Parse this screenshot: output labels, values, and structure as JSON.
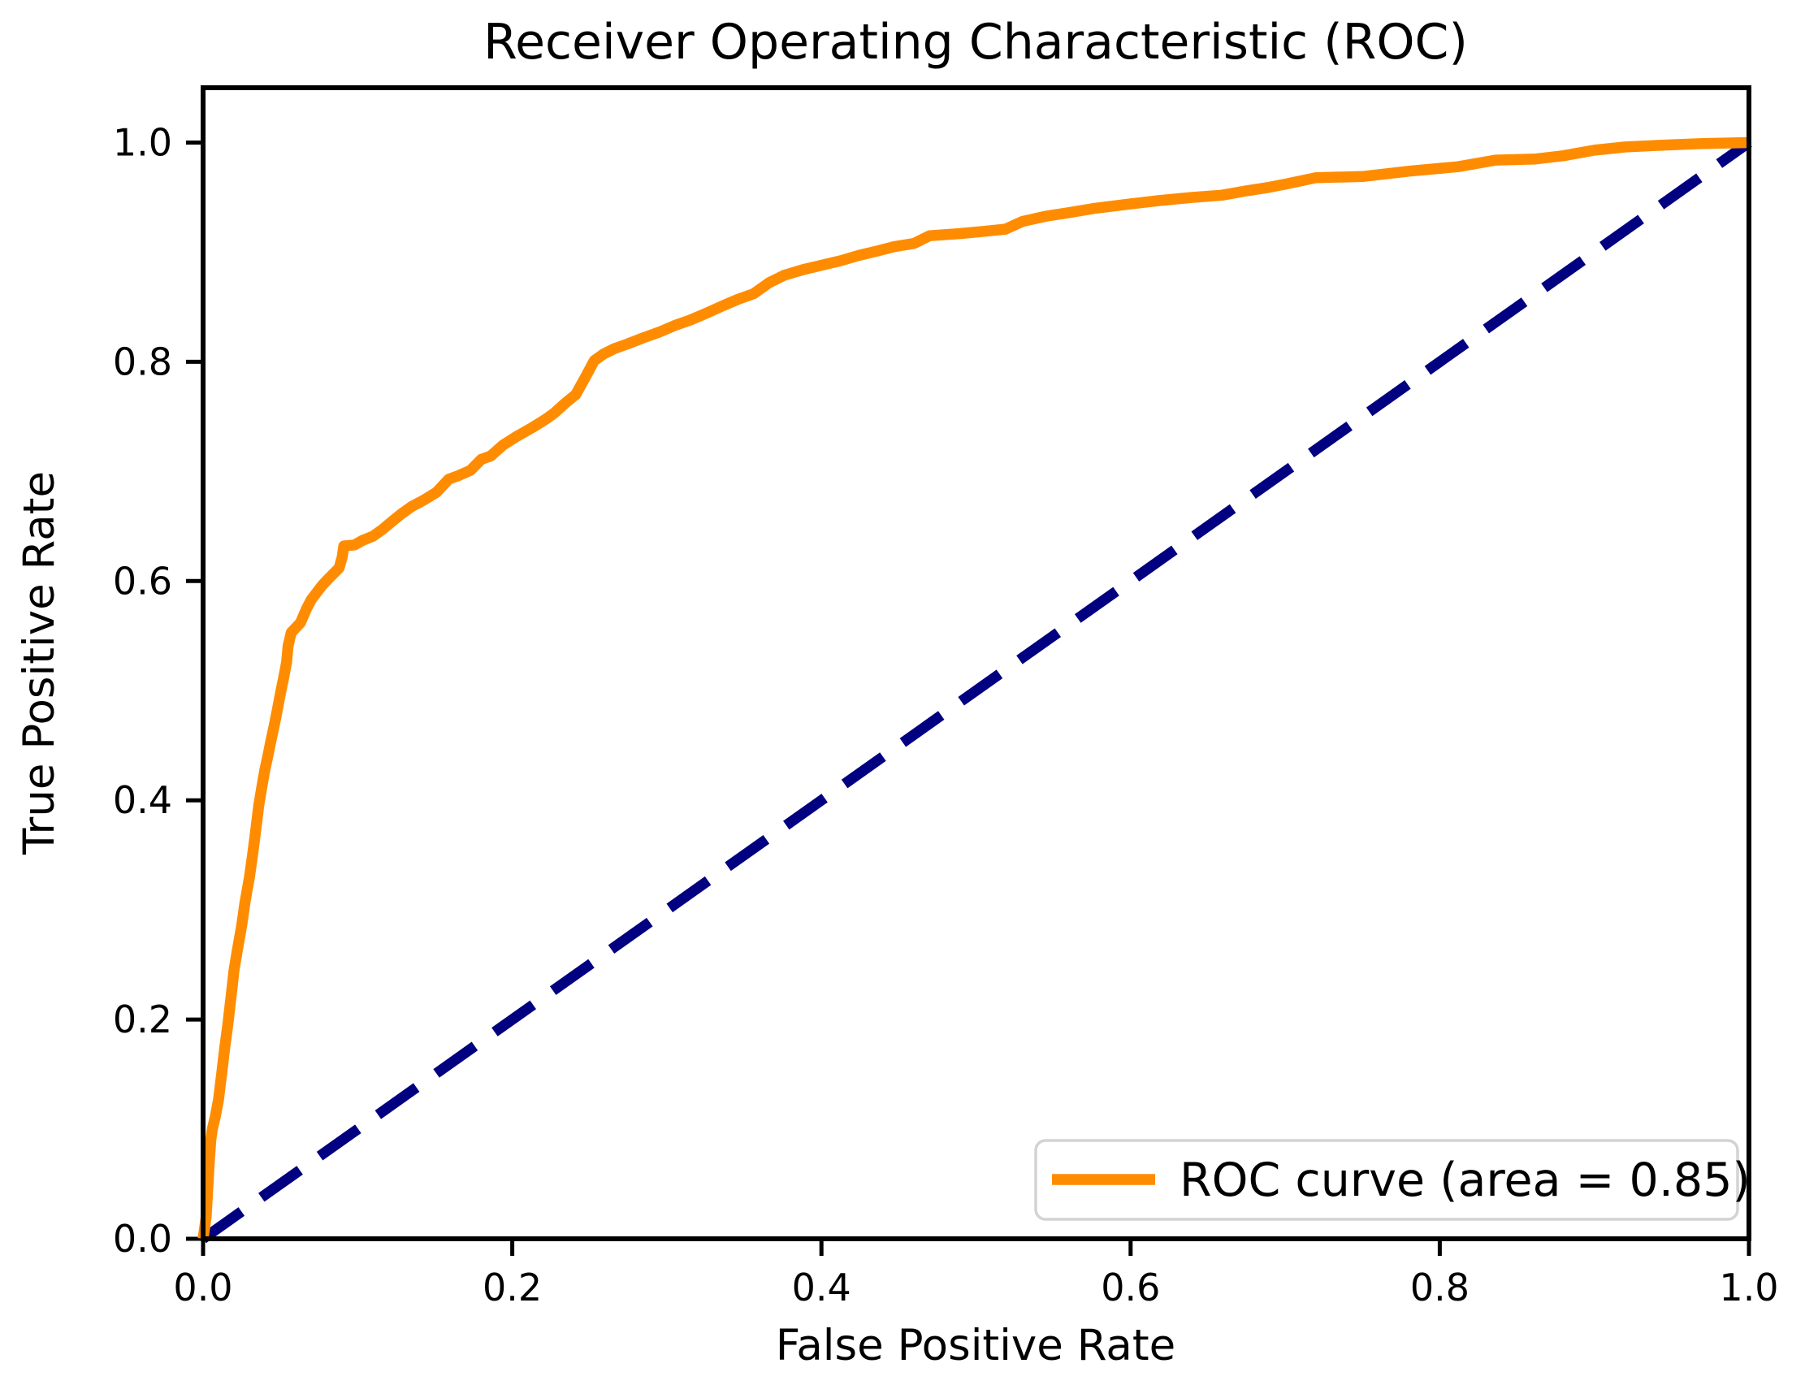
{
  "page": {
    "background_color": "#FFFFFF",
    "axis_color": "#000000",
    "text_color": "#000000"
  },
  "chart_data": {
    "type": "line",
    "title": "Receiver Operating Characteristic (ROC)",
    "xlabel": "False Positive Rate",
    "ylabel": "True Positive Rate",
    "xlim": [
      0.0,
      1.0
    ],
    "ylim": [
      0.0,
      1.05
    ],
    "xticks": [
      0.0,
      0.2,
      0.4,
      0.6,
      0.8,
      1.0
    ],
    "yticks": [
      0.0,
      0.2,
      0.4,
      0.6,
      0.8,
      1.0
    ],
    "grid": false,
    "auc": 0.85,
    "legend": {
      "position": "lower right",
      "entries": [
        {
          "label": "ROC curve (area = 0.85)",
          "color": "#FF8C00",
          "style": "solid"
        }
      ]
    },
    "series": [
      {
        "name": "chance-diagonal",
        "color": "#000080",
        "style": "dashed",
        "linewidth": 13,
        "points": [
          [
            0.0,
            0.0
          ],
          [
            1.0,
            1.0
          ]
        ]
      },
      {
        "name": "ROC curve (area = 0.85)",
        "color": "#FF8C00",
        "style": "solid",
        "linewidth": 13.5,
        "points": [
          [
            0.0,
            0.0
          ],
          [
            0.002,
            0.02
          ],
          [
            0.003,
            0.045
          ],
          [
            0.004,
            0.07
          ],
          [
            0.005,
            0.09
          ],
          [
            0.006,
            0.1
          ],
          [
            0.008,
            0.112
          ],
          [
            0.01,
            0.127
          ],
          [
            0.012,
            0.15
          ],
          [
            0.014,
            0.174
          ],
          [
            0.016,
            0.195
          ],
          [
            0.018,
            0.22
          ],
          [
            0.02,
            0.245
          ],
          [
            0.022,
            0.262
          ],
          [
            0.025,
            0.286
          ],
          [
            0.027,
            0.306
          ],
          [
            0.03,
            0.33
          ],
          [
            0.032,
            0.35
          ],
          [
            0.034,
            0.372
          ],
          [
            0.036,
            0.395
          ],
          [
            0.038,
            0.412
          ],
          [
            0.04,
            0.428
          ],
          [
            0.042,
            0.441
          ],
          [
            0.044,
            0.455
          ],
          [
            0.046,
            0.468
          ],
          [
            0.048,
            0.482
          ],
          [
            0.05,
            0.497
          ],
          [
            0.052,
            0.511
          ],
          [
            0.054,
            0.526
          ],
          [
            0.055,
            0.541
          ],
          [
            0.057,
            0.553
          ],
          [
            0.063,
            0.562
          ],
          [
            0.067,
            0.575
          ],
          [
            0.07,
            0.583
          ],
          [
            0.077,
            0.596
          ],
          [
            0.081,
            0.602
          ],
          [
            0.088,
            0.612
          ],
          [
            0.09,
            0.622
          ],
          [
            0.091,
            0.632
          ],
          [
            0.098,
            0.633
          ],
          [
            0.103,
            0.637
          ],
          [
            0.11,
            0.641
          ],
          [
            0.116,
            0.647
          ],
          [
            0.121,
            0.653
          ],
          [
            0.128,
            0.661
          ],
          [
            0.135,
            0.668
          ],
          [
            0.143,
            0.674
          ],
          [
            0.151,
            0.681
          ],
          [
            0.159,
            0.693
          ],
          [
            0.165,
            0.696
          ],
          [
            0.173,
            0.701
          ],
          [
            0.18,
            0.711
          ],
          [
            0.186,
            0.714
          ],
          [
            0.194,
            0.724
          ],
          [
            0.203,
            0.732
          ],
          [
            0.213,
            0.74
          ],
          [
            0.222,
            0.748
          ],
          [
            0.227,
            0.753
          ],
          [
            0.234,
            0.762
          ],
          [
            0.241,
            0.77
          ],
          [
            0.247,
            0.785
          ],
          [
            0.253,
            0.801
          ],
          [
            0.259,
            0.807
          ],
          [
            0.266,
            0.812
          ],
          [
            0.274,
            0.816
          ],
          [
            0.285,
            0.822
          ],
          [
            0.295,
            0.827
          ],
          [
            0.305,
            0.833
          ],
          [
            0.315,
            0.838
          ],
          [
            0.325,
            0.844
          ],
          [
            0.336,
            0.851
          ],
          [
            0.346,
            0.857
          ],
          [
            0.356,
            0.862
          ],
          [
            0.366,
            0.872
          ],
          [
            0.376,
            0.879
          ],
          [
            0.388,
            0.884
          ],
          [
            0.4,
            0.888
          ],
          [
            0.412,
            0.892
          ],
          [
            0.424,
            0.897
          ],
          [
            0.436,
            0.901
          ],
          [
            0.447,
            0.905
          ],
          [
            0.46,
            0.908
          ],
          [
            0.47,
            0.915
          ],
          [
            0.49,
            0.917
          ],
          [
            0.505,
            0.919
          ],
          [
            0.519,
            0.921
          ],
          [
            0.53,
            0.928
          ],
          [
            0.546,
            0.933
          ],
          [
            0.56,
            0.936
          ],
          [
            0.577,
            0.94
          ],
          [
            0.6,
            0.944
          ],
          [
            0.618,
            0.947
          ],
          [
            0.64,
            0.95
          ],
          [
            0.659,
            0.952
          ],
          [
            0.675,
            0.956
          ],
          [
            0.689,
            0.959
          ],
          [
            0.7,
            0.962
          ],
          [
            0.72,
            0.968
          ],
          [
            0.75,
            0.969
          ],
          [
            0.781,
            0.974
          ],
          [
            0.812,
            0.978
          ],
          [
            0.836,
            0.984
          ],
          [
            0.862,
            0.985
          ],
          [
            0.88,
            0.988
          ],
          [
            0.9,
            0.993
          ],
          [
            0.92,
            0.996
          ],
          [
            0.95,
            0.998
          ],
          [
            0.97,
            0.999
          ],
          [
            1.0,
            1.0
          ]
        ]
      }
    ]
  }
}
